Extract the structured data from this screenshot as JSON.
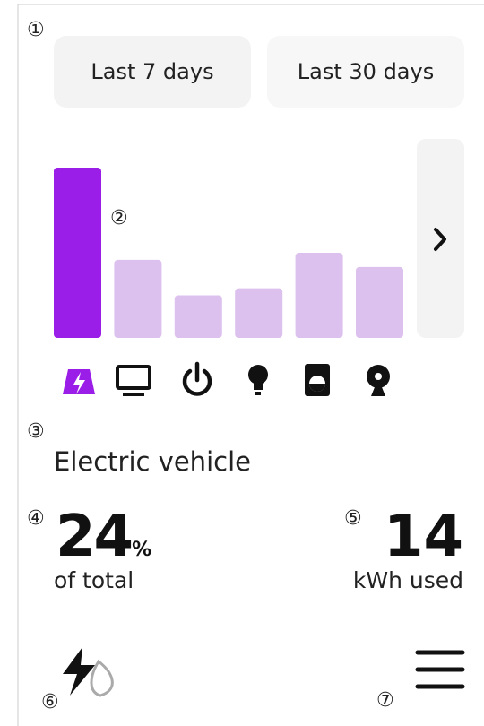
{
  "annotations": [
    "①",
    "②",
    "③",
    "④",
    "⑤",
    "⑥",
    "⑦"
  ],
  "tabs": [
    "Last 7 days",
    "Last 30 days"
  ],
  "usage_chart": {
    "type": "bar",
    "values": [
      24,
      11,
      6,
      7,
      12,
      10
    ],
    "colors": [
      "#9b1de8",
      "#dcc1ee"
    ]
  },
  "selected": {
    "name": "Electric vehicle",
    "percent": "24",
    "percent_unit": "%",
    "percent_caption": "of total",
    "kwh": "14",
    "kwh_caption": "kWh used"
  }
}
